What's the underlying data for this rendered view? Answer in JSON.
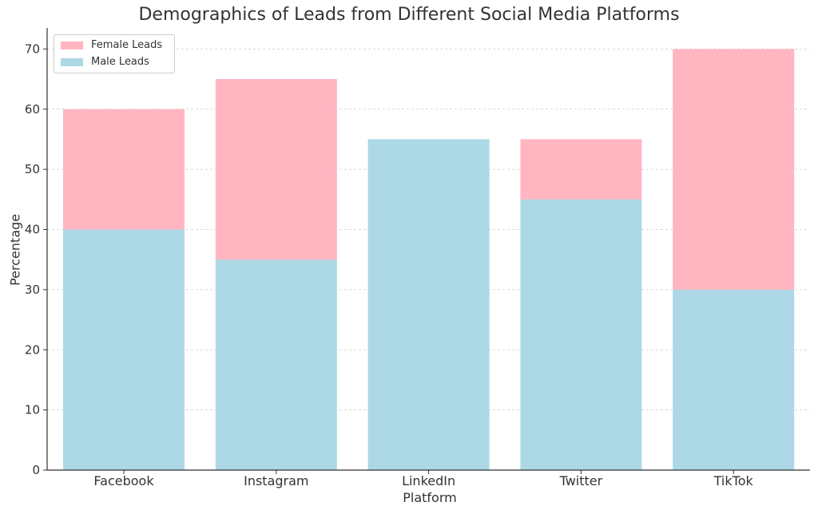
{
  "chart_data": {
    "type": "bar",
    "stacked": true,
    "title": "Demographics of Leads from Different Social Media Platforms",
    "xlabel": "Platform",
    "ylabel": "Percentage",
    "categories": [
      "Facebook",
      "Instagram",
      "LinkedIn",
      "Twitter",
      "TikTok"
    ],
    "series": [
      {
        "name": "Male Leads",
        "values": [
          40,
          35,
          55,
          45,
          30
        ],
        "color": "#add8e6"
      },
      {
        "name": "Female Leads",
        "values": [
          20,
          30,
          0,
          10,
          40
        ],
        "color": "#ffb6c1"
      }
    ],
    "ylim": [
      0,
      73.5
    ],
    "yticks": [
      0,
      10,
      20,
      30,
      40,
      50,
      60,
      70
    ],
    "grid": true,
    "legend_position": "top-left"
  }
}
